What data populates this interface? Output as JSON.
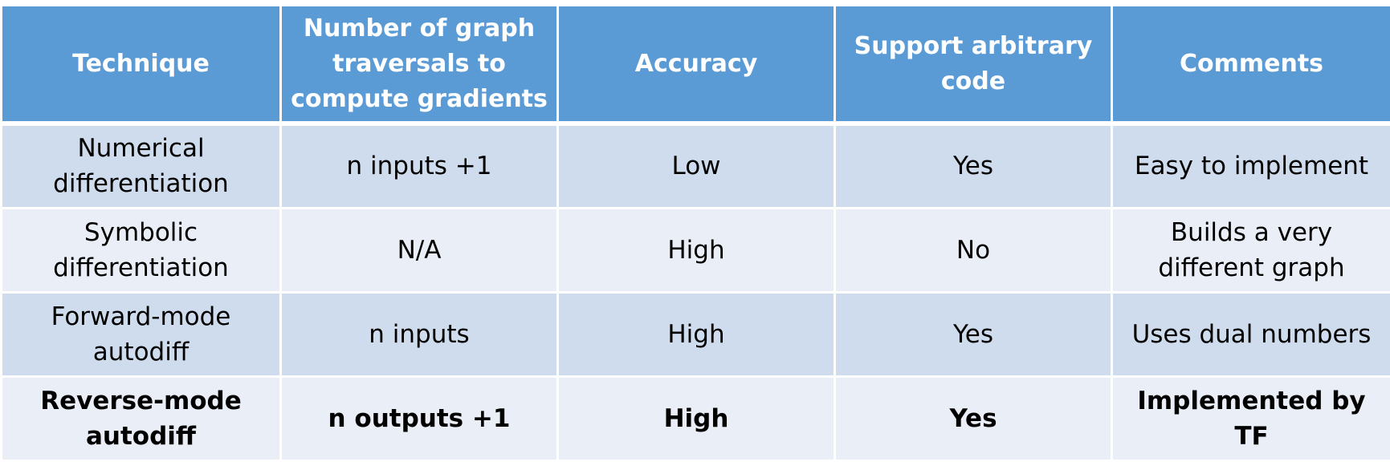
{
  "table": {
    "headers": [
      "Technique",
      "Number of graph\ntraversals to\ncompute gradients",
      "Accuracy",
      "Support arbitrary\ncode",
      "Comments"
    ],
    "rows": [
      {
        "technique": "Numerical\ndifferentiation",
        "traversals": "n inputs +1",
        "accuracy": "Low",
        "arbitrary_code": "Yes",
        "comments": "Easy to implement"
      },
      {
        "technique": "Symbolic\ndifferentiation",
        "traversals": "N/A",
        "accuracy": "High",
        "arbitrary_code": "No",
        "comments": "Builds a very\ndifferent graph"
      },
      {
        "technique": "Forward-mode\nautodiff",
        "traversals": "n inputs",
        "accuracy": "High",
        "arbitrary_code": "Yes",
        "comments": "Uses dual numbers"
      },
      {
        "technique": "Reverse-mode\nautodiff",
        "traversals": "n outputs +1",
        "accuracy": "High",
        "arbitrary_code": "Yes",
        "comments": "Implemented by TF"
      }
    ]
  },
  "colors": {
    "header_bg": "#5b9bd5",
    "row_dark": "#cfdcee",
    "row_light": "#e9eef7",
    "header_text": "#ffffff",
    "body_text": "#000000"
  }
}
